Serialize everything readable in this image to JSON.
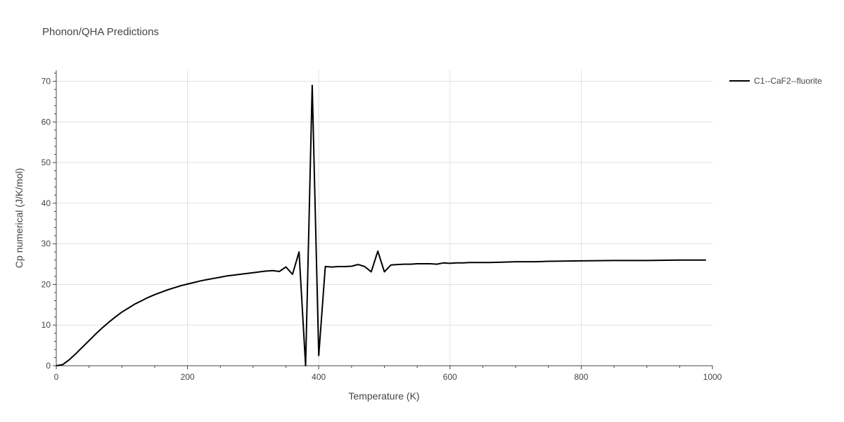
{
  "chart_data": {
    "type": "line",
    "title": "Phonon/QHA Predictions",
    "xlabel": "Temperature (K)",
    "ylabel": "Cp numerical (J/K/mol)",
    "xlim": [
      0,
      1000
    ],
    "ylim": [
      0,
      72.7
    ],
    "x_ticks": [
      0,
      200,
      400,
      600,
      800,
      1000
    ],
    "y_ticks": [
      0,
      10,
      20,
      30,
      40,
      50,
      60,
      70
    ],
    "grid": true,
    "legend_position": "top-right",
    "series": [
      {
        "name": "C1--CaF2--fluorite",
        "color": "#000000",
        "points": [
          [
            0,
            0
          ],
          [
            10,
            0.3
          ],
          [
            20,
            1.5
          ],
          [
            30,
            3.0
          ],
          [
            40,
            4.6
          ],
          [
            50,
            6.2
          ],
          [
            60,
            7.8
          ],
          [
            70,
            9.3
          ],
          [
            80,
            10.7
          ],
          [
            90,
            12.0
          ],
          [
            100,
            13.2
          ],
          [
            110,
            14.2
          ],
          [
            120,
            15.2
          ],
          [
            130,
            16.0
          ],
          [
            140,
            16.8
          ],
          [
            150,
            17.5
          ],
          [
            160,
            18.1
          ],
          [
            170,
            18.7
          ],
          [
            180,
            19.2
          ],
          [
            190,
            19.7
          ],
          [
            200,
            20.1
          ],
          [
            210,
            20.5
          ],
          [
            220,
            20.9
          ],
          [
            230,
            21.2
          ],
          [
            240,
            21.5
          ],
          [
            250,
            21.8
          ],
          [
            260,
            22.1
          ],
          [
            270,
            22.3
          ],
          [
            280,
            22.5
          ],
          [
            290,
            22.7
          ],
          [
            300,
            22.9
          ],
          [
            310,
            23.1
          ],
          [
            320,
            23.3
          ],
          [
            330,
            23.4
          ],
          [
            340,
            23.2
          ],
          [
            350,
            24.3
          ],
          [
            360,
            22.5
          ],
          [
            370,
            28.0
          ],
          [
            380,
            0.0
          ],
          [
            390,
            69.0
          ],
          [
            400,
            2.5
          ],
          [
            410,
            24.4
          ],
          [
            420,
            24.3
          ],
          [
            430,
            24.4
          ],
          [
            440,
            24.4
          ],
          [
            450,
            24.5
          ],
          [
            460,
            24.9
          ],
          [
            470,
            24.4
          ],
          [
            480,
            23.1
          ],
          [
            490,
            28.2
          ],
          [
            500,
            23.1
          ],
          [
            510,
            24.8
          ],
          [
            520,
            24.9
          ],
          [
            530,
            25.0
          ],
          [
            540,
            25.0
          ],
          [
            550,
            25.1
          ],
          [
            560,
            25.1
          ],
          [
            570,
            25.1
          ],
          [
            580,
            25.0
          ],
          [
            590,
            25.3
          ],
          [
            600,
            25.2
          ],
          [
            610,
            25.3
          ],
          [
            620,
            25.3
          ],
          [
            630,
            25.4
          ],
          [
            640,
            25.4
          ],
          [
            650,
            25.4
          ],
          [
            660,
            25.4
          ],
          [
            680,
            25.5
          ],
          [
            700,
            25.6
          ],
          [
            730,
            25.6
          ],
          [
            750,
            25.7
          ],
          [
            800,
            25.8
          ],
          [
            850,
            25.9
          ],
          [
            900,
            25.9
          ],
          [
            950,
            26.0
          ],
          [
            990,
            26.0
          ]
        ]
      }
    ]
  }
}
